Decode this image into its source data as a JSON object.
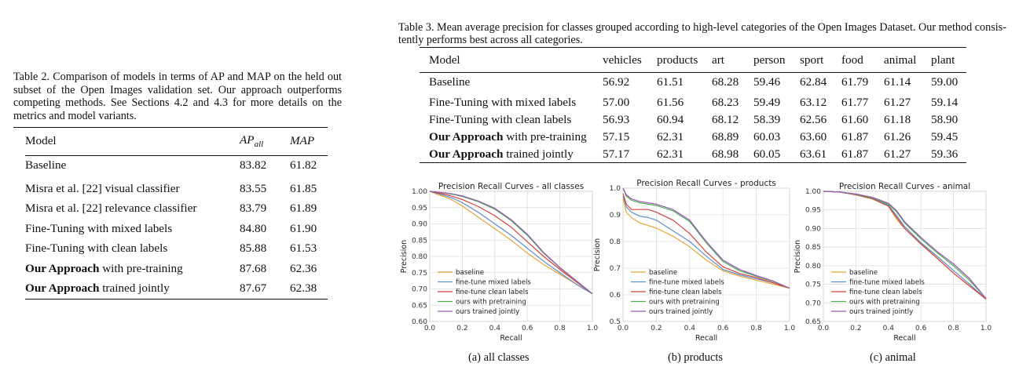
{
  "table2": {
    "caption": "Table 2. Comparison of models in terms of AP and MAP on the held out subset of the Open Images validation set. Our approach outperforms competing methods. See Sections 4.2 and 4.3 for more details on the metrics and model variants.",
    "headers": {
      "model": "Model",
      "ap_main": "AP",
      "ap_sub": "all",
      "map": "MAP"
    },
    "rows": [
      {
        "bold_prefix": "",
        "text": "Baseline",
        "ap": "83.82",
        "map": "61.82",
        "ap_bold": false,
        "map_bold": false
      },
      {
        "bold_prefix": "",
        "text": "Misra et al. [22] visual classifier",
        "ap": "83.55",
        "map": "61.85",
        "ap_bold": false,
        "map_bold": false
      },
      {
        "bold_prefix": "",
        "text": "Misra et al. [22] relevance classifier",
        "ap": "83.79",
        "map": "61.89",
        "ap_bold": false,
        "map_bold": false
      },
      {
        "bold_prefix": "",
        "text": "Fine-Tuning with mixed labels",
        "ap": "84.80",
        "map": "61.90",
        "ap_bold": false,
        "map_bold": false
      },
      {
        "bold_prefix": "",
        "text": "Fine-Tuning with clean labels",
        "ap": "85.88",
        "map": "61.53",
        "ap_bold": false,
        "map_bold": false
      },
      {
        "bold_prefix": "Our Approach",
        "text": " with pre-training",
        "ap": "87.68",
        "map": "62.36",
        "ap_bold": true,
        "map_bold": false
      },
      {
        "bold_prefix": "Our Approach",
        "text": " trained jointly",
        "ap": "87.67",
        "map": "62.38",
        "ap_bold": false,
        "map_bold": true
      }
    ]
  },
  "table3": {
    "caption_line1": "Table 3. Mean average precision for classes grouped according to high-level categories of the Open Images Dataset. Our method consis-",
    "caption_line2": "tently performs best across all categories.",
    "headers": [
      "Model",
      "vehicles",
      "products",
      "art",
      "person",
      "sport",
      "food",
      "animal",
      "plant"
    ],
    "rows": [
      {
        "bold_prefix": "",
        "text": "Baseline",
        "values": [
          "56.92",
          "61.51",
          "68.28",
          "59.46",
          "62.84",
          "61.79",
          "61.14",
          "59.00"
        ],
        "bold": [
          false,
          false,
          false,
          false,
          false,
          false,
          false,
          false
        ]
      },
      {
        "bold_prefix": "",
        "text": "Fine-Tuning with mixed labels",
        "values": [
          "57.00",
          "61.56",
          "68.23",
          "59.49",
          "63.12",
          "61.77",
          "61.27",
          "59.14"
        ],
        "bold": [
          false,
          false,
          false,
          false,
          false,
          false,
          true,
          false
        ]
      },
      {
        "bold_prefix": "",
        "text": "Fine-Tuning with clean labels",
        "values": [
          "56.93",
          "60.94",
          "68.12",
          "58.39",
          "62.56",
          "61.60",
          "61.18",
          "58.90"
        ],
        "bold": [
          false,
          false,
          false,
          false,
          false,
          false,
          false,
          false
        ]
      },
      {
        "bold_prefix": "Our Approach",
        "text": " with pre-training",
        "values": [
          "57.15",
          "62.31",
          "68.89",
          "60.03",
          "63.60",
          "61.87",
          "61.26",
          "59.45"
        ],
        "bold": [
          false,
          true,
          false,
          false,
          false,
          true,
          false,
          true
        ]
      },
      {
        "bold_prefix": "Our Approach",
        "text": " trained jointly",
        "values": [
          "57.17",
          "62.31",
          "68.98",
          "60.05",
          "63.61",
          "61.87",
          "61.27",
          "59.36"
        ],
        "bold": [
          true,
          true,
          true,
          true,
          true,
          true,
          true,
          false
        ]
      }
    ]
  },
  "chart_data": [
    {
      "type": "line",
      "title": "Precision Recall Curves - all classes",
      "xlabel": "Recall",
      "ylabel": "Precision",
      "xlim": [
        0.0,
        1.0
      ],
      "ylim": [
        0.6,
        1.0
      ],
      "xticks": [
        "0.0",
        "0.2",
        "0.4",
        "0.6",
        "0.8",
        "1.0"
      ],
      "yticks": [
        "0.60",
        "0.65",
        "0.70",
        "0.75",
        "0.80",
        "0.85",
        "0.90",
        "0.95",
        "1.00"
      ],
      "grid": true,
      "legend": "lower-left",
      "subcaption": "(a) all classes",
      "series": [
        {
          "name": "baseline",
          "color": "#e8a33d",
          "x": [
            0,
            0.05,
            0.1,
            0.15,
            0.2,
            0.3,
            0.4,
            0.5,
            0.6,
            0.7,
            0.8,
            0.9,
            1.0
          ],
          "y": [
            1.0,
            0.99,
            0.982,
            0.97,
            0.955,
            0.92,
            0.885,
            0.85,
            0.81,
            0.775,
            0.745,
            0.715,
            0.685
          ]
        },
        {
          "name": "fine-tune mixed labels",
          "color": "#5b8fc7",
          "x": [
            0,
            0.05,
            0.1,
            0.15,
            0.2,
            0.3,
            0.4,
            0.5,
            0.6,
            0.7,
            0.8,
            0.9,
            1.0
          ],
          "y": [
            1.0,
            0.993,
            0.986,
            0.977,
            0.965,
            0.935,
            0.9,
            0.865,
            0.825,
            0.785,
            0.75,
            0.715,
            0.685
          ]
        },
        {
          "name": "fine-tune clean labels",
          "color": "#d9413b",
          "x": [
            0,
            0.05,
            0.1,
            0.15,
            0.2,
            0.3,
            0.4,
            0.5,
            0.6,
            0.7,
            0.8,
            0.9,
            1.0
          ],
          "y": [
            1.0,
            0.995,
            0.99,
            0.983,
            0.975,
            0.953,
            0.925,
            0.89,
            0.845,
            0.8,
            0.76,
            0.722,
            0.685
          ]
        },
        {
          "name": "ours with pretraining",
          "color": "#4caf50",
          "x": [
            0,
            0.05,
            0.1,
            0.15,
            0.2,
            0.3,
            0.4,
            0.5,
            0.6,
            0.7,
            0.8,
            0.9,
            1.0
          ],
          "y": [
            1.0,
            0.997,
            0.994,
            0.99,
            0.984,
            0.968,
            0.945,
            0.91,
            0.865,
            0.81,
            0.765,
            0.725,
            0.685
          ]
        },
        {
          "name": "ours trained jointly",
          "color": "#9b59b6",
          "x": [
            0,
            0.05,
            0.1,
            0.15,
            0.2,
            0.3,
            0.4,
            0.5,
            0.6,
            0.7,
            0.8,
            0.9,
            1.0
          ],
          "y": [
            1.0,
            0.997,
            0.995,
            0.991,
            0.986,
            0.97,
            0.948,
            0.913,
            0.868,
            0.812,
            0.766,
            0.726,
            0.685
          ]
        }
      ]
    },
    {
      "type": "line",
      "title": "Precision Recall Curves - products",
      "xlabel": "Recall",
      "ylabel": "Precision",
      "xlim": [
        0.0,
        1.0
      ],
      "ylim": [
        0.5,
        1.0
      ],
      "xticks": [
        "0.0",
        "0.2",
        "0.4",
        "0.6",
        "0.8",
        "1.0"
      ],
      "yticks": [
        "0.5",
        "0.6",
        "0.7",
        "0.8",
        "0.9",
        "1.0"
      ],
      "grid": true,
      "legend": "lower-left",
      "subcaption": "(b) products",
      "series": [
        {
          "name": "baseline",
          "color": "#e8a33d",
          "x": [
            0,
            0.02,
            0.05,
            0.1,
            0.15,
            0.2,
            0.3,
            0.4,
            0.5,
            0.6,
            0.7,
            0.8,
            0.9,
            1.0
          ],
          "y": [
            0.96,
            0.91,
            0.89,
            0.87,
            0.86,
            0.85,
            0.82,
            0.78,
            0.73,
            0.69,
            0.67,
            0.655,
            0.64,
            0.625
          ]
        },
        {
          "name": "fine-tune mixed labels",
          "color": "#5b8fc7",
          "x": [
            0,
            0.02,
            0.05,
            0.1,
            0.15,
            0.2,
            0.3,
            0.4,
            0.5,
            0.6,
            0.7,
            0.8,
            0.9,
            1.0
          ],
          "y": [
            0.97,
            0.93,
            0.91,
            0.895,
            0.89,
            0.88,
            0.84,
            0.8,
            0.745,
            0.695,
            0.675,
            0.66,
            0.645,
            0.625
          ]
        },
        {
          "name": "fine-tune clean labels",
          "color": "#d9413b",
          "x": [
            0,
            0.02,
            0.05,
            0.1,
            0.15,
            0.2,
            0.3,
            0.4,
            0.5,
            0.6,
            0.7,
            0.8,
            0.9,
            1.0
          ],
          "y": [
            0.98,
            0.94,
            0.92,
            0.92,
            0.92,
            0.91,
            0.88,
            0.83,
            0.76,
            0.705,
            0.68,
            0.665,
            0.645,
            0.625
          ]
        },
        {
          "name": "ours with pretraining",
          "color": "#4caf50",
          "x": [
            0,
            0.02,
            0.05,
            0.1,
            0.15,
            0.2,
            0.3,
            0.4,
            0.5,
            0.6,
            0.7,
            0.8,
            0.9,
            1.0
          ],
          "y": [
            1.0,
            0.97,
            0.955,
            0.945,
            0.94,
            0.935,
            0.915,
            0.875,
            0.795,
            0.725,
            0.69,
            0.67,
            0.65,
            0.625
          ]
        },
        {
          "name": "ours trained jointly",
          "color": "#9b59b6",
          "x": [
            0,
            0.02,
            0.05,
            0.1,
            0.15,
            0.2,
            0.3,
            0.4,
            0.5,
            0.6,
            0.7,
            0.8,
            0.9,
            1.0
          ],
          "y": [
            1.0,
            0.975,
            0.96,
            0.95,
            0.945,
            0.94,
            0.92,
            0.88,
            0.8,
            0.73,
            0.695,
            0.672,
            0.652,
            0.625
          ]
        }
      ]
    },
    {
      "type": "line",
      "title": "Precision Recall Curves - animal",
      "xlabel": "Recall",
      "ylabel": "Precision",
      "xlim": [
        0.0,
        1.0
      ],
      "ylim": [
        0.65,
        1.0
      ],
      "xticks": [
        "0.0",
        "0.2",
        "0.4",
        "0.6",
        "0.8",
        "1.0"
      ],
      "yticks": [
        "0.65",
        "0.70",
        "0.75",
        "0.80",
        "0.85",
        "0.90",
        "0.95",
        "1.00"
      ],
      "grid": true,
      "legend": "lower-left",
      "subcaption": "(c) animal",
      "series": [
        {
          "name": "baseline",
          "color": "#e8a33d",
          "x": [
            0,
            0.1,
            0.2,
            0.3,
            0.4,
            0.45,
            0.5,
            0.6,
            0.7,
            0.8,
            0.9,
            1.0
          ],
          "y": [
            1.0,
            0.998,
            0.99,
            0.98,
            0.96,
            0.925,
            0.9,
            0.86,
            0.82,
            0.78,
            0.745,
            0.71
          ]
        },
        {
          "name": "fine-tune mixed labels",
          "color": "#5b8fc7",
          "x": [
            0,
            0.1,
            0.2,
            0.3,
            0.4,
            0.45,
            0.5,
            0.6,
            0.7,
            0.8,
            0.9,
            1.0
          ],
          "y": [
            1.0,
            0.998,
            0.991,
            0.981,
            0.962,
            0.935,
            0.905,
            0.862,
            0.825,
            0.787,
            0.75,
            0.71
          ]
        },
        {
          "name": "fine-tune clean labels",
          "color": "#d9413b",
          "x": [
            0,
            0.1,
            0.2,
            0.3,
            0.4,
            0.45,
            0.5,
            0.6,
            0.7,
            0.8,
            0.9,
            1.0
          ],
          "y": [
            1.0,
            0.998,
            0.991,
            0.98,
            0.96,
            0.93,
            0.9,
            0.858,
            0.82,
            0.78,
            0.745,
            0.71
          ]
        },
        {
          "name": "ours with pretraining",
          "color": "#4caf50",
          "x": [
            0,
            0.1,
            0.2,
            0.3,
            0.4,
            0.45,
            0.5,
            0.6,
            0.7,
            0.8,
            0.9,
            1.0
          ],
          "y": [
            1.0,
            0.998,
            0.992,
            0.982,
            0.965,
            0.945,
            0.915,
            0.872,
            0.835,
            0.8,
            0.76,
            0.712
          ]
        },
        {
          "name": "ours trained jointly",
          "color": "#9b59b6",
          "x": [
            0,
            0.1,
            0.2,
            0.3,
            0.4,
            0.45,
            0.5,
            0.6,
            0.7,
            0.8,
            0.9,
            1.0
          ],
          "y": [
            1.0,
            0.998,
            0.993,
            0.984,
            0.968,
            0.948,
            0.918,
            0.876,
            0.838,
            0.805,
            0.765,
            0.712
          ]
        }
      ]
    }
  ]
}
